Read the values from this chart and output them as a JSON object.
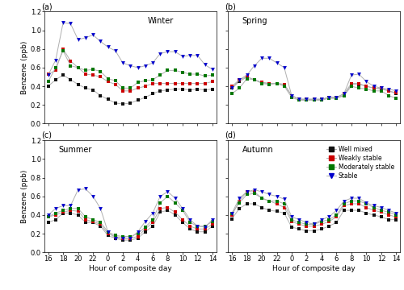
{
  "hours": [
    16,
    17,
    18,
    19,
    20,
    21,
    22,
    23,
    0,
    1,
    2,
    3,
    4,
    5,
    6,
    7,
    8,
    9,
    10,
    11,
    12,
    13,
    14
  ],
  "seasons": [
    "Winter",
    "Spring",
    "Summer",
    "Autumn"
  ],
  "season_keys": [
    "winter",
    "spring",
    "summer",
    "autumn"
  ],
  "panel_labels": [
    "(a)",
    "(b)",
    "(c)",
    "(d)"
  ],
  "line_color": "#b0b0b0",
  "colors": {
    "well_mixed": "#111111",
    "weakly_stable": "#cc0000",
    "moderately_stable": "#007700",
    "stable": "#0000cc"
  },
  "legend_labels": [
    "Well mixed",
    "Weakly stable",
    "Moderately stable",
    "Stable"
  ],
  "ylabel": "Benzene (ppb)",
  "xlabel": "Hour of composite day",
  "ylim": [
    0.0,
    1.2
  ],
  "yticks": [
    0.0,
    0.2,
    0.4,
    0.6,
    0.8,
    1.0,
    1.2
  ],
  "xtick_labels": [
    "16",
    "18",
    "20",
    "22",
    "0",
    "2",
    "4",
    "6",
    "8",
    "10",
    "12",
    "14"
  ],
  "xtick_positions": [
    16,
    18,
    20,
    22,
    24,
    26,
    28,
    30,
    32,
    34,
    36,
    38
  ],
  "winter": {
    "well_mixed": [
      0.4,
      0.47,
      0.52,
      0.47,
      0.42,
      0.38,
      0.36,
      0.3,
      0.26,
      0.22,
      0.21,
      0.22,
      0.25,
      0.28,
      0.32,
      0.35,
      0.36,
      0.37,
      0.37,
      0.36,
      0.37,
      0.36,
      0.37
    ],
    "weakly_stable": [
      0.53,
      0.57,
      0.8,
      0.67,
      0.6,
      0.53,
      0.52,
      0.5,
      0.45,
      0.42,
      0.35,
      0.35,
      0.38,
      0.4,
      0.43,
      0.43,
      0.43,
      0.43,
      0.43,
      0.43,
      0.43,
      0.43,
      0.45
    ],
    "moderately_stable": [
      0.45,
      0.6,
      0.78,
      0.62,
      0.6,
      0.57,
      0.58,
      0.56,
      0.48,
      0.46,
      0.38,
      0.38,
      0.44,
      0.46,
      0.47,
      0.52,
      0.57,
      0.57,
      0.55,
      0.53,
      0.53,
      0.51,
      0.52
    ],
    "stable": [
      0.52,
      0.68,
      1.08,
      1.07,
      0.9,
      0.92,
      0.95,
      0.88,
      0.82,
      0.78,
      0.65,
      0.62,
      0.6,
      0.62,
      0.65,
      0.75,
      0.77,
      0.77,
      0.72,
      0.73,
      0.73,
      0.63,
      0.58
    ]
  },
  "spring": {
    "well_mixed": [
      0.38,
      0.45,
      0.5,
      0.47,
      0.44,
      0.43,
      0.43,
      0.42,
      0.3,
      0.26,
      0.26,
      0.26,
      0.26,
      0.28,
      0.28,
      0.3,
      0.42,
      0.42,
      0.4,
      0.38,
      0.37,
      0.35,
      0.32
    ],
    "weakly_stable": [
      0.4,
      0.47,
      0.5,
      0.47,
      0.44,
      0.43,
      0.43,
      0.42,
      0.3,
      0.26,
      0.26,
      0.26,
      0.26,
      0.28,
      0.28,
      0.32,
      0.43,
      0.43,
      0.4,
      0.38,
      0.38,
      0.35,
      0.33
    ],
    "moderately_stable": [
      0.32,
      0.38,
      0.48,
      0.47,
      0.43,
      0.42,
      0.43,
      0.4,
      0.28,
      0.25,
      0.25,
      0.25,
      0.25,
      0.27,
      0.27,
      0.3,
      0.4,
      0.38,
      0.37,
      0.35,
      0.35,
      0.3,
      0.27
    ],
    "stable": [
      0.38,
      0.47,
      0.52,
      0.62,
      0.7,
      0.7,
      0.65,
      0.6,
      0.3,
      0.26,
      0.26,
      0.26,
      0.26,
      0.28,
      0.28,
      0.32,
      0.52,
      0.53,
      0.45,
      0.4,
      0.38,
      0.37,
      0.35
    ]
  },
  "summer": {
    "well_mixed": [
      0.32,
      0.35,
      0.42,
      0.42,
      0.4,
      0.32,
      0.32,
      0.28,
      0.18,
      0.15,
      0.13,
      0.13,
      0.15,
      0.22,
      0.28,
      0.43,
      0.45,
      0.4,
      0.32,
      0.25,
      0.22,
      0.22,
      0.28
    ],
    "weakly_stable": [
      0.38,
      0.4,
      0.43,
      0.45,
      0.44,
      0.35,
      0.33,
      0.3,
      0.2,
      0.17,
      0.15,
      0.15,
      0.17,
      0.25,
      0.32,
      0.47,
      0.48,
      0.43,
      0.35,
      0.28,
      0.25,
      0.25,
      0.3
    ],
    "moderately_stable": [
      0.38,
      0.42,
      0.45,
      0.47,
      0.47,
      0.38,
      0.35,
      0.32,
      0.22,
      0.18,
      0.17,
      0.17,
      0.2,
      0.27,
      0.35,
      0.53,
      0.6,
      0.53,
      0.45,
      0.32,
      0.28,
      0.28,
      0.33
    ],
    "stable": [
      0.4,
      0.47,
      0.5,
      0.5,
      0.67,
      0.68,
      0.6,
      0.47,
      0.22,
      0.15,
      0.15,
      0.15,
      0.22,
      0.33,
      0.42,
      0.6,
      0.65,
      0.58,
      0.47,
      0.35,
      0.28,
      0.27,
      0.35
    ]
  },
  "autumn": {
    "well_mixed": [
      0.36,
      0.47,
      0.52,
      0.52,
      0.48,
      0.45,
      0.44,
      0.42,
      0.27,
      0.25,
      0.23,
      0.23,
      0.25,
      0.28,
      0.32,
      0.45,
      0.45,
      0.45,
      0.42,
      0.4,
      0.38,
      0.35,
      0.35
    ],
    "weakly_stable": [
      0.4,
      0.55,
      0.65,
      0.65,
      0.58,
      0.55,
      0.52,
      0.48,
      0.33,
      0.3,
      0.28,
      0.28,
      0.3,
      0.33,
      0.38,
      0.5,
      0.52,
      0.52,
      0.48,
      0.45,
      0.43,
      0.4,
      0.38
    ],
    "moderately_stable": [
      0.42,
      0.53,
      0.62,
      0.63,
      0.58,
      0.55,
      0.55,
      0.52,
      0.35,
      0.32,
      0.3,
      0.3,
      0.33,
      0.35,
      0.4,
      0.52,
      0.55,
      0.55,
      0.52,
      0.48,
      0.45,
      0.43,
      0.4
    ],
    "stable": [
      0.42,
      0.58,
      0.65,
      0.67,
      0.65,
      0.62,
      0.6,
      0.57,
      0.38,
      0.35,
      0.32,
      0.3,
      0.35,
      0.38,
      0.45,
      0.55,
      0.58,
      0.58,
      0.53,
      0.5,
      0.48,
      0.45,
      0.42
    ]
  }
}
